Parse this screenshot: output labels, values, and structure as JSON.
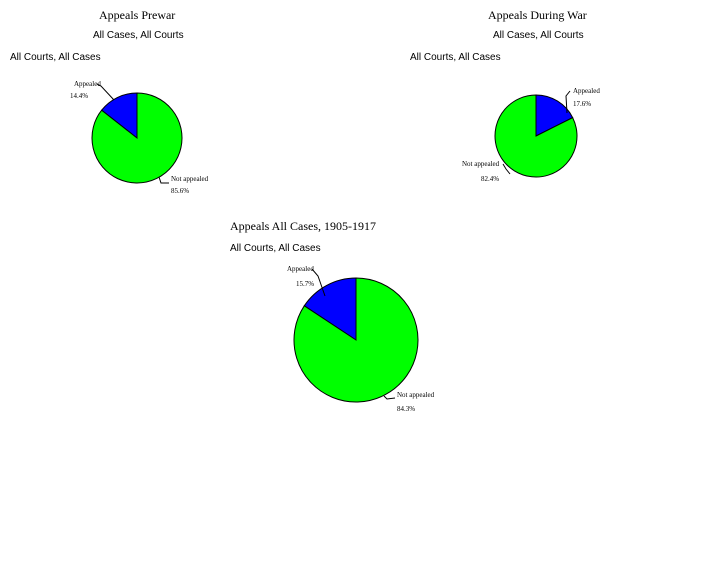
{
  "colors": {
    "appealed": "#0000ff",
    "not_appealed": "#00ff00",
    "outline": "#000000"
  },
  "chart_data": [
    {
      "type": "pie",
      "title": "Appeals Prewar",
      "subtitle": "All Cases, All Courts",
      "caption": "All Courts, All Cases",
      "slices": [
        {
          "label": "Appealed",
          "value": 14.4,
          "pct_text": "14.4%"
        },
        {
          "label": "Not appealed",
          "value": 85.6,
          "pct_text": "85.6%"
        }
      ]
    },
    {
      "type": "pie",
      "title": "Appeals During War",
      "subtitle": "All Cases, All Courts",
      "caption": "All Courts, All Cases",
      "slices": [
        {
          "label": "Appealed",
          "value": 17.6,
          "pct_text": "17.6%"
        },
        {
          "label": "Not appealed",
          "value": 82.4,
          "pct_text": "82.4%"
        }
      ]
    },
    {
      "type": "pie",
      "title": "Appeals All Cases, 1905-1917",
      "subtitle": "",
      "caption": "All Courts, All Cases",
      "slices": [
        {
          "label": "Appealed",
          "value": 15.7,
          "pct_text": "15.7%"
        },
        {
          "label": "Not appealed",
          "value": 84.3,
          "pct_text": "84.3%"
        }
      ]
    }
  ]
}
